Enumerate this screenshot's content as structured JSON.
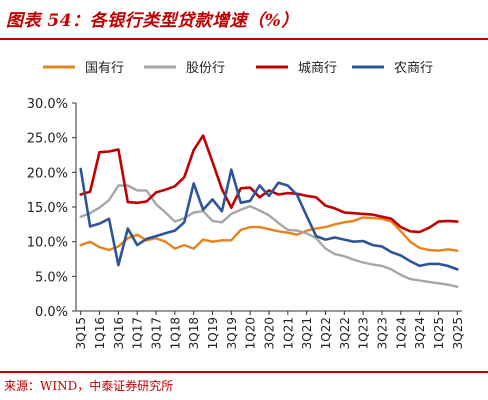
{
  "title": "图表 54：各银行类型贷款增速（%）",
  "source": "来源：WIND，中泰证券研究所",
  "chart_data": {
    "type": "line",
    "ylim": [
      0,
      30
    ],
    "ytick_step": 5,
    "ytick_format": "percent_1dp",
    "grid": false,
    "legend_position": "top",
    "x": [
      "3Q15",
      "4Q15",
      "1Q16",
      "2Q16",
      "3Q16",
      "4Q16",
      "1Q17",
      "2Q17",
      "3Q17",
      "4Q17",
      "1Q18",
      "2Q18",
      "3Q18",
      "4Q18",
      "1Q19",
      "2Q19",
      "3Q19",
      "4Q19",
      "1Q20",
      "2Q20",
      "3Q20",
      "4Q20",
      "1Q21",
      "2Q21",
      "3Q21",
      "4Q21",
      "1Q22",
      "2Q22",
      "3Q22",
      "4Q22",
      "1Q23",
      "2Q23",
      "3Q23",
      "4Q23",
      "1Q24",
      "2Q24",
      "3Q24",
      "4Q24",
      "1Q25",
      "2Q25",
      "3Q25"
    ],
    "xtick_labels": [
      "3Q15",
      "1Q16",
      "3Q16",
      "1Q17",
      "3Q17",
      "1Q18",
      "3Q18",
      "1Q19",
      "3Q19",
      "1Q20",
      "3Q20",
      "1Q21",
      "3Q21",
      "1Q22",
      "3Q22",
      "1Q23",
      "3Q23",
      "1Q24",
      "3Q24",
      "1Q25",
      "3Q25"
    ],
    "series": [
      {
        "name": "国有行",
        "color": "#e8821e",
        "values": [
          9.5,
          10.0,
          9.2,
          8.8,
          9.3,
          10.5,
          11.0,
          10.2,
          10.5,
          10.0,
          9.0,
          9.5,
          9.0,
          10.3,
          10.0,
          10.2,
          10.2,
          11.7,
          12.1,
          12.1,
          11.8,
          11.5,
          11.3,
          11.0,
          11.6,
          11.9,
          12.1,
          12.5,
          12.8,
          13.0,
          13.5,
          13.4,
          13.3,
          12.9,
          11.5,
          10.0,
          9.1,
          8.8,
          8.7,
          8.9,
          8.7
        ]
      },
      {
        "name": "股份行",
        "color": "#a6a6a6",
        "values": [
          13.6,
          14.1,
          14.9,
          16.0,
          18.1,
          18.1,
          17.4,
          17.4,
          15.4,
          14.2,
          12.9,
          13.4,
          14.2,
          14.4,
          13.0,
          12.8,
          14.0,
          14.6,
          15.1,
          14.5,
          13.8,
          12.7,
          11.7,
          11.6,
          11.2,
          10.5,
          9.0,
          8.2,
          7.9,
          7.4,
          7.0,
          6.7,
          6.5,
          6.0,
          5.2,
          4.6,
          4.4,
          4.2,
          4.0,
          3.8,
          3.5
        ]
      },
      {
        "name": "城商行",
        "color": "#c00000",
        "values": [
          16.8,
          17.2,
          22.9,
          23.0,
          23.3,
          15.7,
          15.6,
          15.8,
          17.1,
          17.5,
          18.0,
          19.3,
          23.2,
          25.3,
          21.5,
          17.6,
          14.9,
          17.7,
          17.8,
          16.4,
          17.4,
          16.8,
          17.0,
          16.9,
          16.6,
          16.4,
          15.2,
          14.8,
          14.2,
          14.1,
          14.0,
          13.9,
          13.6,
          13.3,
          12.1,
          11.5,
          11.4,
          12.0,
          12.9,
          13.0,
          12.9
        ]
      },
      {
        "name": "农商行",
        "color": "#2e5597",
        "values": [
          20.5,
          12.2,
          12.6,
          13.3,
          6.6,
          11.9,
          9.5,
          10.4,
          10.8,
          11.2,
          11.6,
          12.8,
          18.4,
          14.6,
          16.1,
          14.4,
          20.4,
          15.6,
          15.9,
          18.1,
          16.6,
          18.5,
          18.1,
          16.7,
          13.7,
          10.8,
          10.3,
          10.6,
          10.3,
          10.0,
          10.1,
          9.5,
          9.3,
          8.5,
          8.0,
          7.2,
          6.5,
          6.8,
          6.8,
          6.5,
          6.0
        ]
      }
    ]
  }
}
